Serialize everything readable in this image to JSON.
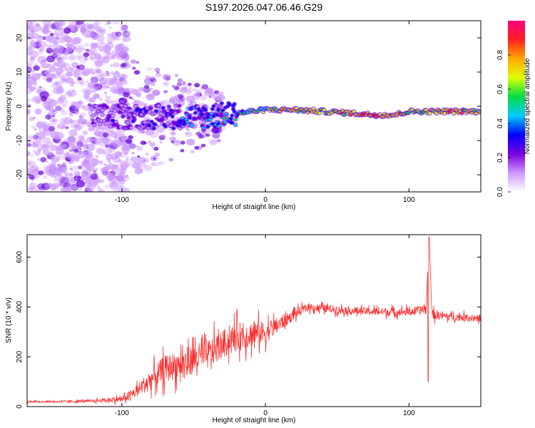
{
  "title": "S197.2026.047.06.46.G29",
  "colors": {
    "snr_line": "#ff3030",
    "frame": "#000000",
    "trace_low": "#cc99ff",
    "trace_mid": "#6600dd",
    "trace_strong": "#0033ff",
    "trace_peak": "#ff2020"
  },
  "chart_data": [
    {
      "type": "heatmap",
      "xlabel": "Height of straight line (km)",
      "ylabel": "Frequency (Hz)",
      "xlim": [
        -166,
        150
      ],
      "ylim": [
        -25,
        25
      ],
      "xticks": [
        -100,
        0,
        100
      ],
      "yticks": [
        -20,
        -10,
        0,
        10,
        20
      ],
      "colorbar": {
        "label": "Normalized spectral amplitude",
        "range": [
          0.0,
          1.0
        ],
        "ticks": [
          "0.0",
          "0.2",
          "0.4",
          "0.6",
          "0.8"
        ],
        "colormap": [
          "#ffffff",
          "#cc99ff",
          "#7a00e0",
          "#0000ff",
          "#00ccff",
          "#00dd44",
          "#ddff00",
          "#ffaa00",
          "#ff2020",
          "#ff0080"
        ]
      },
      "ridge": {
        "description": "dominant frequency ridge",
        "x": [
          -120,
          -100,
          -80,
          -60,
          -40,
          -20,
          0,
          20,
          40,
          60,
          75,
          90,
          100,
          110,
          130,
          150
        ],
        "frequency": [
          -3,
          -3,
          -3,
          -3,
          -3,
          -2,
          -1,
          -1,
          -1.5,
          -2,
          -2.5,
          -2.5,
          -1.5,
          -1.5,
          -1.5,
          -1.5
        ],
        "amplitude": [
          0.1,
          0.15,
          0.2,
          0.25,
          0.3,
          0.45,
          0.55,
          0.7,
          0.6,
          0.75,
          0.85,
          0.8,
          0.6,
          0.65,
          0.8,
          0.6
        ]
      }
    },
    {
      "type": "line",
      "xlabel": "Height of straight line (km)",
      "ylabel": "SNR (10 * v/v)",
      "xlim": [
        -166,
        150
      ],
      "ylim": [
        0,
        690
      ],
      "xticks": [
        -100,
        0,
        100
      ],
      "yticks": [
        0,
        200,
        400,
        600
      ],
      "series": [
        {
          "name": "SNR",
          "x": [
            -166,
            -140,
            -120,
            -100,
            -90,
            -80,
            -70,
            -60,
            -50,
            -40,
            -30,
            -20,
            -10,
            0,
            10,
            20,
            30,
            40,
            60,
            80,
            100,
            112,
            114,
            116,
            130,
            150
          ],
          "y": [
            20,
            20,
            22,
            30,
            60,
            110,
            150,
            170,
            190,
            210,
            250,
            280,
            290,
            300,
            330,
            370,
            400,
            395,
            385,
            380,
            380,
            390,
            680,
            370,
            360,
            355
          ],
          "noise": [
            5,
            5,
            8,
            15,
            30,
            50,
            70,
            70,
            75,
            75,
            70,
            75,
            65,
            55,
            40,
            25,
            20,
            20,
            20,
            20,
            20,
            25,
            0,
            25,
            20,
            15
          ]
        }
      ]
    }
  ]
}
